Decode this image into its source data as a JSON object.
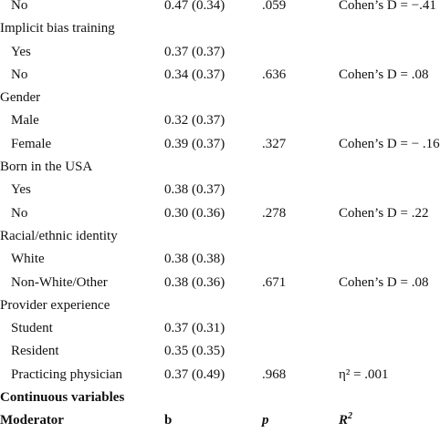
{
  "rows": [
    {
      "label": "No",
      "indent": true,
      "b": "0.47 (0.34)",
      "p": ".059",
      "effect": "Cohen’s D = −.41"
    },
    {
      "label": "Implicit bias training",
      "indent": false,
      "b": "",
      "p": "",
      "effect": ""
    },
    {
      "label": "Yes",
      "indent": true,
      "b": "0.37 (0.37)",
      "p": "",
      "effect": ""
    },
    {
      "label": "No",
      "indent": true,
      "b": "0.34 (0.37)",
      "p": ".636",
      "effect": "Cohen’s D = .08"
    },
    {
      "label": "Gender",
      "indent": false,
      "b": "",
      "p": "",
      "effect": ""
    },
    {
      "label": "Male",
      "indent": true,
      "b": "0.32 (0.37)",
      "p": "",
      "effect": ""
    },
    {
      "label": "Female",
      "indent": true,
      "b": "0.39 (0.37)",
      "p": ".327",
      "effect": "Cohen’s D = − .16"
    },
    {
      "label": "Born in the USA",
      "indent": false,
      "b": "",
      "p": "",
      "effect": ""
    },
    {
      "label": "Yes",
      "indent": true,
      "b": "0.38 (0.37)",
      "p": "",
      "effect": ""
    },
    {
      "label": "No",
      "indent": true,
      "b": "0.30 (0.36)",
      "p": ".278",
      "effect": "Cohen’s D = .22"
    },
    {
      "label": "Racial/ethnic identity",
      "indent": false,
      "b": "",
      "p": "",
      "effect": ""
    },
    {
      "label": "White",
      "indent": true,
      "b": "0.38 (0.38)",
      "p": "",
      "effect": ""
    },
    {
      "label": "Non-White/Other",
      "indent": true,
      "b": "0.38 (0.36)",
      "p": ".671",
      "effect": "Cohen’s D = .08"
    },
    {
      "label": "Provider experience",
      "indent": false,
      "b": "",
      "p": "",
      "effect": ""
    },
    {
      "label": "Student",
      "indent": true,
      "b": "0.37 (0.31)",
      "p": "",
      "effect": ""
    },
    {
      "label": "Resident",
      "indent": true,
      "b": "0.35 (0.35)",
      "p": "",
      "effect": ""
    },
    {
      "label": "Practicing physician",
      "indent": true,
      "b": "0.37 (0.49)",
      "p": ".968",
      "effect": "η² = .001"
    }
  ],
  "section": {
    "label": "Continuous variables"
  },
  "header": {
    "moderator": "Moderator",
    "b": "b",
    "p": "p",
    "r": "R",
    "r_sup": "2"
  }
}
